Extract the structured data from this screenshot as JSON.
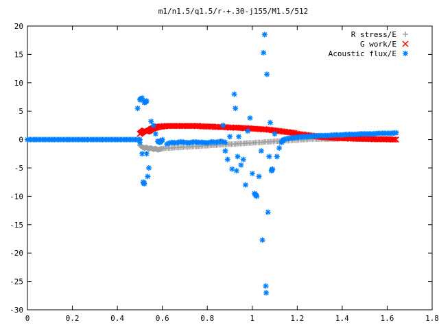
{
  "chart_data": {
    "type": "scatter",
    "title": "m1/n1.5/q1.5/r-+.30-j155/M1.5/512",
    "xlabel": "",
    "ylabel": "",
    "xlim": [
      0,
      1.8
    ],
    "ylim": [
      -30,
      20
    ],
    "x_ticks": [
      "0",
      "0.2",
      "0.4",
      "0.6",
      "0.8",
      "1",
      "1.2",
      "1.4",
      "1.6",
      "1.8"
    ],
    "y_ticks": [
      "20",
      "15",
      "10",
      "5",
      "0",
      "-5",
      "-10",
      "-15",
      "-20",
      "-25",
      "-30"
    ],
    "grid": false,
    "legend_position": "top-right",
    "series": [
      {
        "name": "R stress/E",
        "marker": "plus",
        "color": "#a0a0a0",
        "points": [
          [
            0.5,
            -1.0
          ],
          [
            0.51,
            -1.3
          ],
          [
            0.52,
            -1.5
          ],
          [
            0.53,
            -1.4
          ],
          [
            0.54,
            -1.6
          ],
          [
            0.55,
            -1.5
          ],
          [
            0.56,
            -1.7
          ],
          [
            0.57,
            -1.6
          ],
          [
            0.58,
            -1.8
          ],
          [
            0.59,
            -1.7
          ],
          [
            0.6,
            -1.6
          ],
          [
            0.62,
            -1.5
          ],
          [
            0.64,
            -1.5
          ],
          [
            0.66,
            -1.4
          ],
          [
            0.68,
            -1.4
          ],
          [
            0.7,
            -1.3
          ],
          [
            0.72,
            -1.3
          ],
          [
            0.74,
            -1.2
          ],
          [
            0.76,
            -1.2
          ],
          [
            0.78,
            -1.1
          ],
          [
            0.8,
            -1.1
          ],
          [
            0.82,
            -1.0
          ],
          [
            0.84,
            -1.0
          ],
          [
            0.86,
            -0.9
          ],
          [
            0.88,
            -0.9
          ],
          [
            0.9,
            -0.8
          ],
          [
            0.92,
            -0.8
          ],
          [
            0.94,
            -0.7
          ],
          [
            0.96,
            -0.7
          ],
          [
            0.98,
            -0.6
          ],
          [
            1.0,
            -0.6
          ],
          [
            1.02,
            -0.5
          ],
          [
            1.04,
            -0.5
          ],
          [
            1.06,
            -0.4
          ],
          [
            1.08,
            -0.4
          ],
          [
            1.1,
            -0.3
          ],
          [
            1.12,
            -0.3
          ],
          [
            1.14,
            -0.2
          ],
          [
            1.16,
            -0.2
          ],
          [
            1.18,
            -0.1
          ],
          [
            1.2,
            -0.1
          ],
          [
            1.22,
            0.0
          ],
          [
            1.24,
            0.0
          ],
          [
            1.26,
            0.1
          ],
          [
            1.28,
            0.1
          ],
          [
            1.3,
            0.1
          ],
          [
            1.32,
            0.1
          ],
          [
            1.34,
            0.1
          ],
          [
            1.36,
            0.1
          ],
          [
            1.38,
            0.1
          ]
        ]
      },
      {
        "name": "G work/E",
        "marker": "cross",
        "color": "#ff0000",
        "points": [
          [
            0.5,
            1.0
          ],
          [
            0.51,
            1.3
          ],
          [
            0.52,
            1.6
          ],
          [
            0.53,
            1.4
          ],
          [
            0.54,
            1.5
          ],
          [
            0.55,
            1.8
          ],
          [
            0.56,
            2.0
          ],
          [
            0.57,
            2.1
          ],
          [
            0.58,
            2.2
          ],
          [
            0.59,
            2.3
          ],
          [
            0.6,
            2.3
          ],
          [
            0.62,
            2.4
          ],
          [
            0.64,
            2.4
          ],
          [
            0.66,
            2.4
          ],
          [
            0.68,
            2.4
          ],
          [
            0.7,
            2.4
          ],
          [
            0.72,
            2.4
          ],
          [
            0.74,
            2.4
          ],
          [
            0.76,
            2.4
          ],
          [
            0.78,
            2.3
          ],
          [
            0.8,
            2.3
          ],
          [
            0.82,
            2.3
          ],
          [
            0.84,
            2.2
          ],
          [
            0.86,
            2.2
          ],
          [
            0.88,
            2.2
          ],
          [
            0.9,
            2.1
          ],
          [
            0.92,
            2.1
          ],
          [
            0.94,
            2.1
          ],
          [
            0.96,
            2.0
          ],
          [
            0.98,
            2.0
          ],
          [
            1.0,
            1.9
          ],
          [
            1.02,
            1.9
          ],
          [
            1.04,
            1.8
          ],
          [
            1.06,
            1.8
          ],
          [
            1.08,
            1.7
          ],
          [
            1.1,
            1.6
          ],
          [
            1.12,
            1.5
          ],
          [
            1.14,
            1.4
          ],
          [
            1.16,
            1.3
          ],
          [
            1.18,
            1.2
          ],
          [
            1.2,
            1.0
          ],
          [
            1.22,
            0.9
          ],
          [
            1.24,
            0.8
          ],
          [
            1.26,
            0.7
          ],
          [
            1.28,
            0.6
          ],
          [
            1.3,
            0.5
          ],
          [
            1.32,
            0.4
          ],
          [
            1.34,
            0.35
          ],
          [
            1.36,
            0.3
          ],
          [
            1.38,
            0.25
          ],
          [
            1.4,
            0.2
          ],
          [
            1.42,
            0.2
          ],
          [
            1.44,
            0.15
          ],
          [
            1.46,
            0.15
          ],
          [
            1.48,
            0.1
          ],
          [
            1.5,
            0.1
          ],
          [
            1.52,
            0.1
          ],
          [
            1.54,
            0.05
          ],
          [
            1.56,
            0.05
          ],
          [
            1.58,
            0.05
          ],
          [
            1.6,
            0.05
          ],
          [
            1.62,
            0.0
          ],
          [
            1.64,
            0.0
          ]
        ]
      },
      {
        "name": "Acoustic flux/E",
        "marker": "star",
        "color": "#0080ff",
        "points": [
          [
            0.0,
            0.0
          ],
          [
            0.02,
            0.0
          ],
          [
            0.04,
            0.0
          ],
          [
            0.06,
            0.0
          ],
          [
            0.08,
            0.0
          ],
          [
            0.1,
            0.0
          ],
          [
            0.12,
            0.0
          ],
          [
            0.14,
            0.0
          ],
          [
            0.16,
            0.0
          ],
          [
            0.18,
            0.0
          ],
          [
            0.2,
            0.0
          ],
          [
            0.22,
            0.0
          ],
          [
            0.24,
            0.0
          ],
          [
            0.26,
            0.0
          ],
          [
            0.28,
            0.0
          ],
          [
            0.3,
            0.0
          ],
          [
            0.32,
            0.0
          ],
          [
            0.34,
            0.0
          ],
          [
            0.36,
            0.0
          ],
          [
            0.38,
            0.0
          ],
          [
            0.4,
            0.0
          ],
          [
            0.42,
            0.0
          ],
          [
            0.44,
            0.0
          ],
          [
            0.46,
            0.0
          ],
          [
            0.48,
            0.0
          ],
          [
            0.5,
            0.0
          ],
          [
            0.49,
            5.5
          ],
          [
            0.5,
            7.0
          ],
          [
            0.51,
            7.3
          ],
          [
            0.52,
            6.5
          ],
          [
            0.53,
            6.8
          ],
          [
            0.5,
            -0.5
          ],
          [
            0.51,
            -2.5
          ],
          [
            0.52,
            -7.8
          ],
          [
            0.515,
            -7.5
          ],
          [
            0.535,
            -6.5
          ],
          [
            0.54,
            -5.0
          ],
          [
            0.53,
            -2.5
          ],
          [
            0.55,
            3.2
          ],
          [
            0.56,
            2.5
          ],
          [
            0.57,
            1.0
          ],
          [
            0.58,
            -0.3
          ],
          [
            0.59,
            -0.5
          ],
          [
            0.6,
            0.0
          ],
          [
            0.62,
            -0.8
          ],
          [
            0.64,
            -0.5
          ],
          [
            0.66,
            -0.6
          ],
          [
            0.68,
            -0.4
          ],
          [
            0.7,
            -0.5
          ],
          [
            0.72,
            -0.6
          ],
          [
            0.74,
            -0.4
          ],
          [
            0.76,
            -0.5
          ],
          [
            0.78,
            -0.5
          ],
          [
            0.8,
            -0.6
          ],
          [
            0.82,
            -0.4
          ],
          [
            0.84,
            -0.5
          ],
          [
            0.86,
            -0.3
          ],
          [
            0.88,
            -0.5
          ],
          [
            0.87,
            2.5
          ],
          [
            0.88,
            -2.0
          ],
          [
            0.89,
            -3.5
          ],
          [
            0.9,
            0.5
          ],
          [
            0.91,
            -5.2
          ],
          [
            0.92,
            8.0
          ],
          [
            0.925,
            5.5
          ],
          [
            0.93,
            -5.5
          ],
          [
            0.935,
            -3.0
          ],
          [
            0.94,
            0.5
          ],
          [
            0.95,
            -4.5
          ],
          [
            0.96,
            -3.5
          ],
          [
            0.97,
            -8.0
          ],
          [
            0.98,
            1.5
          ],
          [
            0.99,
            3.8
          ],
          [
            1.0,
            -6.0
          ],
          [
            1.01,
            -9.5
          ],
          [
            1.02,
            -10.0
          ],
          [
            1.03,
            -6.5
          ],
          [
            1.04,
            -2.0
          ],
          [
            1.045,
            -17.7
          ],
          [
            1.05,
            15.3
          ],
          [
            1.055,
            18.5
          ],
          [
            1.06,
            -25.8
          ],
          [
            1.062,
            -27.0
          ],
          [
            1.065,
            11.5
          ],
          [
            1.07,
            -12.8
          ],
          [
            1.075,
            -3.0
          ],
          [
            1.08,
            3.0
          ],
          [
            1.085,
            -5.5
          ],
          [
            1.09,
            -5.2
          ],
          [
            1.1,
            1.0
          ],
          [
            1.11,
            -3.0
          ],
          [
            1.12,
            -1.5
          ],
          [
            1.13,
            -0.5
          ],
          [
            1.14,
            0.0
          ],
          [
            1.16,
            0.2
          ],
          [
            1.18,
            0.3
          ],
          [
            1.2,
            0.4
          ],
          [
            1.22,
            0.5
          ],
          [
            1.24,
            0.5
          ],
          [
            1.26,
            0.6
          ],
          [
            1.28,
            0.6
          ],
          [
            1.3,
            0.7
          ],
          [
            1.32,
            0.7
          ],
          [
            1.34,
            0.7
          ],
          [
            1.36,
            0.8
          ],
          [
            1.38,
            0.8
          ],
          [
            1.4,
            0.8
          ],
          [
            1.42,
            0.9
          ],
          [
            1.44,
            0.9
          ],
          [
            1.46,
            0.9
          ],
          [
            1.48,
            1.0
          ],
          [
            1.5,
            1.0
          ],
          [
            1.52,
            1.0
          ],
          [
            1.54,
            1.0
          ],
          [
            1.56,
            1.1
          ],
          [
            1.58,
            1.1
          ],
          [
            1.6,
            1.1
          ],
          [
            1.62,
            1.1
          ],
          [
            1.64,
            1.2
          ]
        ]
      }
    ]
  }
}
